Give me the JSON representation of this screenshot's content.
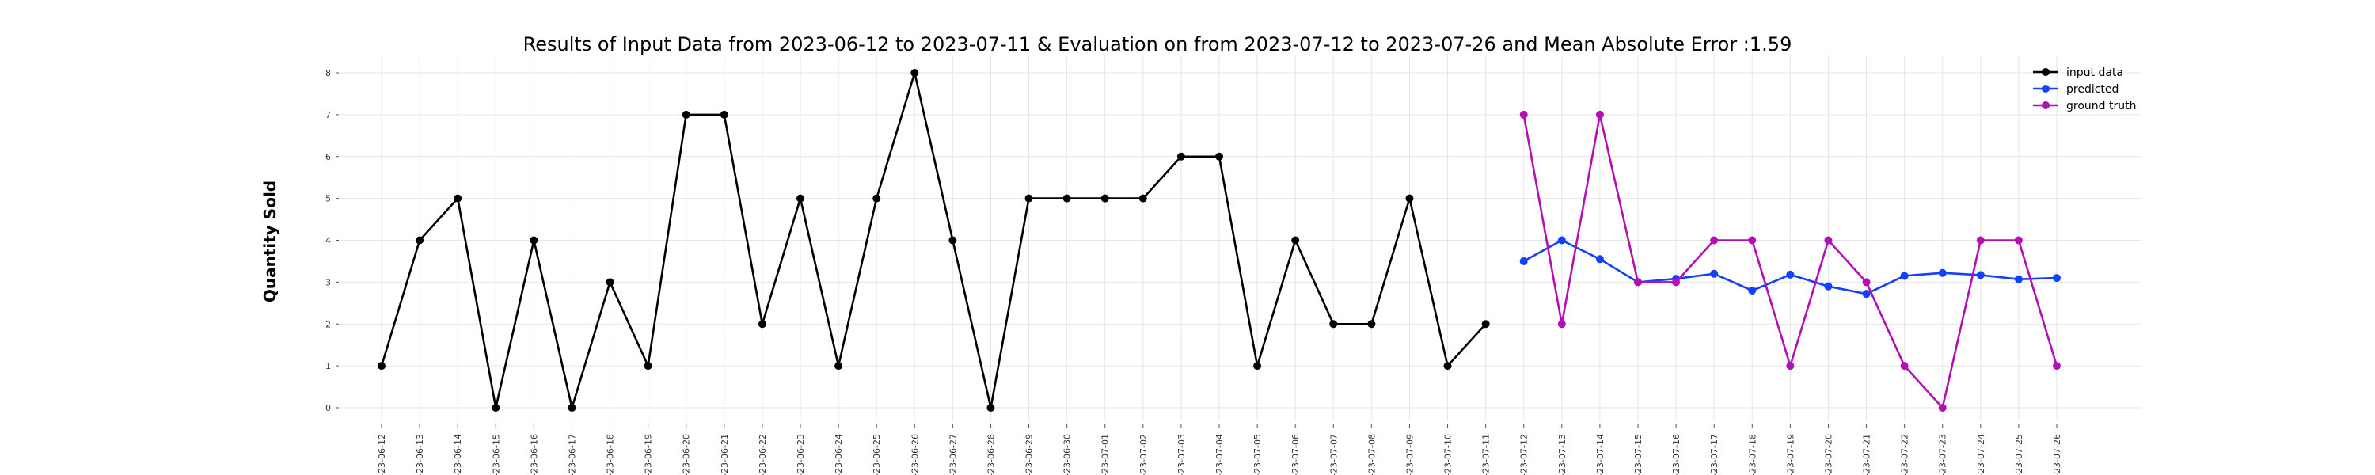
{
  "chart_data": {
    "type": "line",
    "title": "Results of Input Data from 2023-06-12 to 2023-07-11 & Evaluation on from 2023-07-12 to 2023-07-26 and Mean Absolute Error  :1.59",
    "xlabel": "",
    "ylabel": "Quantity Sold",
    "ylim": [
      -0.3,
      8.3
    ],
    "yticks": [
      0,
      1,
      2,
      3,
      4,
      5,
      6,
      7,
      8
    ],
    "ytick_labels": [
      "0",
      "1",
      "2",
      "3",
      "4",
      "5",
      "6",
      "7",
      "8"
    ],
    "grid": true,
    "legend_position": "top-right",
    "x": [
      "2023-06-12",
      "2023-06-13",
      "2023-06-14",
      "2023-06-15",
      "2023-06-16",
      "2023-06-17",
      "2023-06-18",
      "2023-06-19",
      "2023-06-20",
      "2023-06-21",
      "2023-06-22",
      "2023-06-23",
      "2023-06-24",
      "2023-06-25",
      "2023-06-26",
      "2023-06-27",
      "2023-06-28",
      "2023-06-29",
      "2023-06-30",
      "2023-07-01",
      "2023-07-02",
      "2023-07-03",
      "2023-07-04",
      "2023-07-05",
      "2023-07-06",
      "2023-07-07",
      "2023-07-08",
      "2023-07-09",
      "2023-07-10",
      "2023-07-11",
      "2023-07-12",
      "2023-07-13",
      "2023-07-14",
      "2023-07-15",
      "2023-07-16",
      "2023-07-17",
      "2023-07-18",
      "2023-07-19",
      "2023-07-20",
      "2023-07-21",
      "2023-07-22",
      "2023-07-23",
      "2023-07-24",
      "2023-07-25",
      "2023-07-26"
    ],
    "xtick_labels": [
      "-23-06-12",
      "-23-06-13",
      "-23-06-14",
      "-23-06-15",
      "-23-06-16",
      "-23-06-17",
      "-23-06-18",
      "-23-06-19",
      "-23-06-20",
      "-23-06-21",
      "-23-06-22",
      "-23-06-23",
      "-23-06-24",
      "-23-06-25",
      "-23-06-26",
      "-23-06-27",
      "-23-06-28",
      "-23-06-29",
      "-23-06-30",
      "-23-07-01",
      "-23-07-02",
      "-23-07-03",
      "-23-07-04",
      "-23-07-05",
      "-23-07-06",
      "-23-07-07",
      "-23-07-08",
      "-23-07-09",
      "-23-07-10",
      "-23-07-11",
      "-23-07-12",
      "-23-07-13",
      "-23-07-14",
      "-23-07-15",
      "-23-07-16",
      "-23-07-17",
      "-23-07-18",
      "-23-07-19",
      "-23-07-20",
      "-23-07-21",
      "-23-07-22",
      "-23-07-23",
      "-23-07-24",
      "-23-07-25",
      "-23-07-26"
    ],
    "series": [
      {
        "name": "input data",
        "color": "#000000",
        "x": [
          "2023-06-12",
          "2023-06-13",
          "2023-06-14",
          "2023-06-15",
          "2023-06-16",
          "2023-06-17",
          "2023-06-18",
          "2023-06-19",
          "2023-06-20",
          "2023-06-21",
          "2023-06-22",
          "2023-06-23",
          "2023-06-24",
          "2023-06-25",
          "2023-06-26",
          "2023-06-27",
          "2023-06-28",
          "2023-06-29",
          "2023-06-30",
          "2023-07-01",
          "2023-07-02",
          "2023-07-03",
          "2023-07-04",
          "2023-07-05",
          "2023-07-06",
          "2023-07-07",
          "2023-07-08",
          "2023-07-09",
          "2023-07-10",
          "2023-07-11"
        ],
        "values": [
          1,
          4,
          5,
          0,
          4,
          0,
          3,
          1,
          7,
          7,
          2,
          5,
          1,
          5,
          8,
          4,
          0,
          5,
          5,
          5,
          5,
          6,
          6,
          1,
          4,
          2,
          2,
          5,
          1,
          2
        ]
      },
      {
        "name": "predicted",
        "color": "#1440ff",
        "x": [
          "2023-07-12",
          "2023-07-13",
          "2023-07-14",
          "2023-07-15",
          "2023-07-16",
          "2023-07-17",
          "2023-07-18",
          "2023-07-19",
          "2023-07-20",
          "2023-07-21",
          "2023-07-22",
          "2023-07-23",
          "2023-07-24",
          "2023-07-25",
          "2023-07-26"
        ],
        "values": [
          3.5,
          4.0,
          3.55,
          3.0,
          3.08,
          3.2,
          2.8,
          3.18,
          2.9,
          2.72,
          3.15,
          3.22,
          3.17,
          3.07,
          3.1
        ]
      },
      {
        "name": "ground truth",
        "color": "#b40fb4",
        "x": [
          "2023-07-12",
          "2023-07-13",
          "2023-07-14",
          "2023-07-15",
          "2023-07-16",
          "2023-07-17",
          "2023-07-18",
          "2023-07-19",
          "2023-07-20",
          "2023-07-21",
          "2023-07-22",
          "2023-07-23",
          "2023-07-24",
          "2023-07-25",
          "2023-07-26"
        ],
        "values": [
          7,
          2,
          7,
          3,
          3,
          4,
          4,
          1,
          4,
          3,
          1,
          0,
          4,
          4,
          1
        ]
      }
    ]
  }
}
